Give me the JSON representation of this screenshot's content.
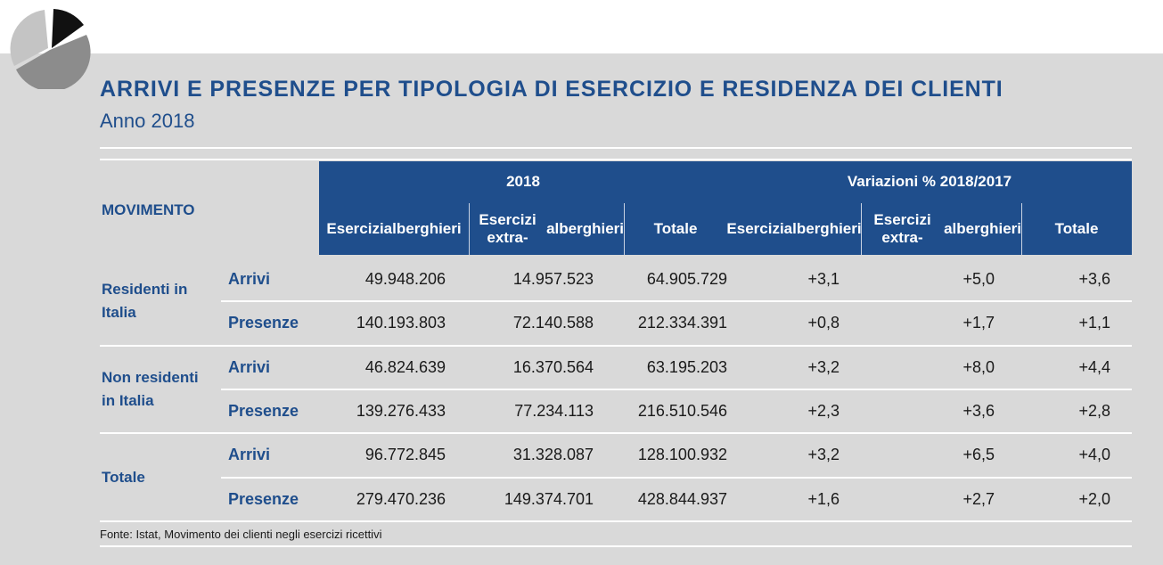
{
  "title": "ARRIVI E PRESENZE PER TIPOLOGIA DI ESERCIZIO E RESIDENZA DEI CLIENTI",
  "subtitle": "Anno 2018",
  "header": {
    "movimento": "MOVIMENTO",
    "year": "2018",
    "variation": "Variazioni % 2018/2017",
    "cols": [
      [
        "Esercizi",
        "alberghieri"
      ],
      [
        "Esercizi extra-",
        "alberghieri"
      ],
      [
        "Totale"
      ],
      [
        "Esercizi",
        "alberghieri"
      ],
      [
        "Esercizi extra-",
        "alberghieri"
      ],
      [
        "Totale"
      ]
    ]
  },
  "groups": [
    {
      "label": [
        "Residenti in",
        "Italia"
      ],
      "rows": [
        {
          "type": "Arrivi",
          "values": [
            "49.948.206",
            "14.957.523",
            "64.905.729",
            "+3,1",
            "+5,0",
            "+3,6"
          ]
        },
        {
          "type": "Presenze",
          "values": [
            "140.193.803",
            "72.140.588",
            "212.334.391",
            "+0,8",
            "+1,7",
            "+1,1"
          ]
        }
      ]
    },
    {
      "label": [
        "Non residenti",
        "in Italia"
      ],
      "rows": [
        {
          "type": "Arrivi",
          "values": [
            "46.824.639",
            "16.370.564",
            "63.195.203",
            "+3,2",
            "+8,0",
            "+4,4"
          ]
        },
        {
          "type": "Presenze",
          "values": [
            "139.276.433",
            "77.234.113",
            "216.510.546",
            "+2,3",
            "+3,6",
            "+2,8"
          ]
        }
      ]
    },
    {
      "label": [
        "Totale"
      ],
      "rows": [
        {
          "type": "Arrivi",
          "values": [
            "96.772.845",
            "31.328.087",
            "128.100.932",
            "+3,2",
            "+6,5",
            "+4,0"
          ]
        },
        {
          "type": "Presenze",
          "values": [
            "279.470.236",
            "149.374.701",
            "428.844.937",
            "+1,6",
            "+2,7",
            "+2,0"
          ]
        }
      ]
    }
  ],
  "source": "Fonte: Istat, Movimento dei clienti negli esercizi ricettivi",
  "colors": {
    "accent": "#1f4e8c",
    "panel": "#d9d9d9",
    "pie_dark": "#111111",
    "pie_mid": "#8c8c8c",
    "pie_light": "#c4c4c4"
  }
}
